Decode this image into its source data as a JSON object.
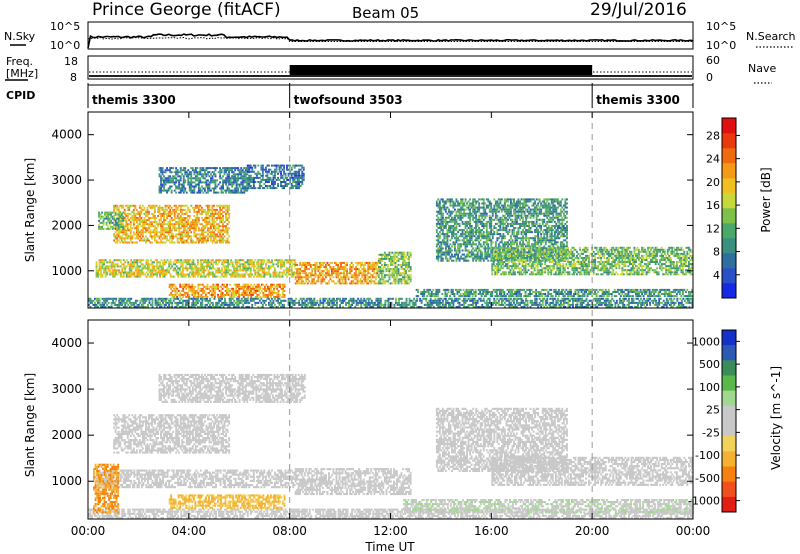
{
  "header": {
    "title": "Prince George (fitACF)",
    "beam": "Beam 05",
    "date": "29/Jul/2016"
  },
  "top_panels": {
    "nsky_label": "N.Sky",
    "nsky_ticks": [
      "10^5",
      "10^0"
    ],
    "nsearch_label": "N.Search",
    "nsearch_ticks": [
      "10^5",
      "10^0"
    ],
    "freq_label_line1": "Freq.",
    "freq_label_line2": "[MHz]",
    "freq_ticks": [
      "18",
      "8"
    ],
    "nave_label": "Nave",
    "nave_ticks": [
      "60",
      "0"
    ],
    "cpid_label": "CPID"
  },
  "cpid_segments": [
    {
      "name": "themis 3300",
      "start_h": 0,
      "end_h": 8
    },
    {
      "name": "twofsound 3503",
      "start_h": 8,
      "end_h": 20
    },
    {
      "name": "themis 3300",
      "start_h": 20,
      "end_h": 24
    }
  ],
  "time_axis": {
    "label": "Time UT",
    "ticks": [
      "00:00",
      "04:00",
      "08:00",
      "12:00",
      "16:00",
      "20:00",
      "00:00"
    ],
    "range_h": [
      0,
      24
    ]
  },
  "chart_data": [
    {
      "type": "heatmap",
      "quantity": "Power",
      "ylabel": "Slant Range [km]",
      "ylim": [
        180,
        4500
      ],
      "yticks": [
        1000,
        2000,
        3000,
        4000
      ],
      "colorbar": {
        "label": "Power [dB]",
        "range": [
          0,
          31
        ],
        "ticks": [
          "4",
          "8",
          "12",
          "16",
          "20",
          "24",
          "28"
        ],
        "colors": [
          "#1428e6",
          "#2a50c8",
          "#2f6fa0",
          "#3a8f80",
          "#4aa86a",
          "#7cc24a",
          "#c8d83a",
          "#f0c020",
          "#f59a18",
          "#f06a10",
          "#e83a0c",
          "#e01010"
        ]
      },
      "regions": [
        {
          "t0": 0.0,
          "t1": 24.0,
          "r0": 180,
          "r1": 420,
          "v": 9
        },
        {
          "t0": 0.3,
          "t1": 8.2,
          "r0": 850,
          "r1": 1250,
          "v": 17
        },
        {
          "t0": 8.2,
          "t1": 11.5,
          "r0": 700,
          "r1": 1200,
          "v": 21
        },
        {
          "t0": 11.5,
          "t1": 12.8,
          "r0": 700,
          "r1": 1400,
          "v": 14
        },
        {
          "t0": 1.0,
          "t1": 5.6,
          "r0": 1600,
          "r1": 2450,
          "v": 20
        },
        {
          "t0": 0.4,
          "t1": 1.4,
          "r0": 1900,
          "r1": 2300,
          "v": 12
        },
        {
          "t0": 2.8,
          "t1": 6.4,
          "r0": 2700,
          "r1": 3300,
          "v": 8
        },
        {
          "t0": 6.3,
          "t1": 8.6,
          "r0": 2800,
          "r1": 3350,
          "v": 7
        },
        {
          "t0": 3.2,
          "t1": 7.8,
          "r0": 400,
          "r1": 700,
          "v": 22
        },
        {
          "t0": 13.8,
          "t1": 19.0,
          "r0": 1200,
          "r1": 2600,
          "v": 10
        },
        {
          "t0": 16.0,
          "t1": 24.0,
          "r0": 900,
          "r1": 1550,
          "v": 13
        },
        {
          "t0": 13.0,
          "t1": 24.0,
          "r0": 420,
          "r1": 600,
          "v": 10
        }
      ]
    },
    {
      "type": "heatmap",
      "quantity": "Velocity",
      "ylabel": "Slant Range [km]",
      "ylim": [
        180,
        4500
      ],
      "yticks": [
        1000,
        2000,
        3000,
        4000
      ],
      "colorbar": {
        "label": "Velocity [m s^-1]",
        "ticks": [
          "1000",
          "500",
          "100",
          "25",
          "-25",
          "-100",
          "-500",
          "-1000"
        ],
        "colors": [
          "#1432c8",
          "#2a5ab4",
          "#3c8c5a",
          "#58b84a",
          "#a0d890",
          "#c8c8c8",
          "#c8c8c8",
          "#f2d25a",
          "#f5b232",
          "#f5820f",
          "#f0501e",
          "#e01e14"
        ]
      },
      "regions": [
        {
          "t0": 0.0,
          "t1": 24.0,
          "r0": 180,
          "r1": 420,
          "v": 60
        },
        {
          "t0": 0.3,
          "t1": 8.2,
          "r0": 850,
          "r1": 1250,
          "v": 0
        },
        {
          "t0": 0.2,
          "t1": 1.2,
          "r0": 300,
          "r1": 1400,
          "v": -300
        },
        {
          "t0": 8.2,
          "t1": 12.8,
          "r0": 700,
          "r1": 1300,
          "v": 0
        },
        {
          "t0": 1.0,
          "t1": 5.6,
          "r0": 1600,
          "r1": 2450,
          "v": 0
        },
        {
          "t0": 2.8,
          "t1": 8.6,
          "r0": 2700,
          "r1": 3350,
          "v": 0
        },
        {
          "t0": 3.2,
          "t1": 7.8,
          "r0": 400,
          "r1": 700,
          "v": -120
        },
        {
          "t0": 13.8,
          "t1": 19.0,
          "r0": 1200,
          "r1": 2600,
          "v": 0
        },
        {
          "t0": 16.0,
          "t1": 24.0,
          "r0": 900,
          "r1": 1550,
          "v": 0
        },
        {
          "t0": 12.5,
          "t1": 24.0,
          "r0": 300,
          "r1": 600,
          "v": 80
        }
      ]
    }
  ]
}
